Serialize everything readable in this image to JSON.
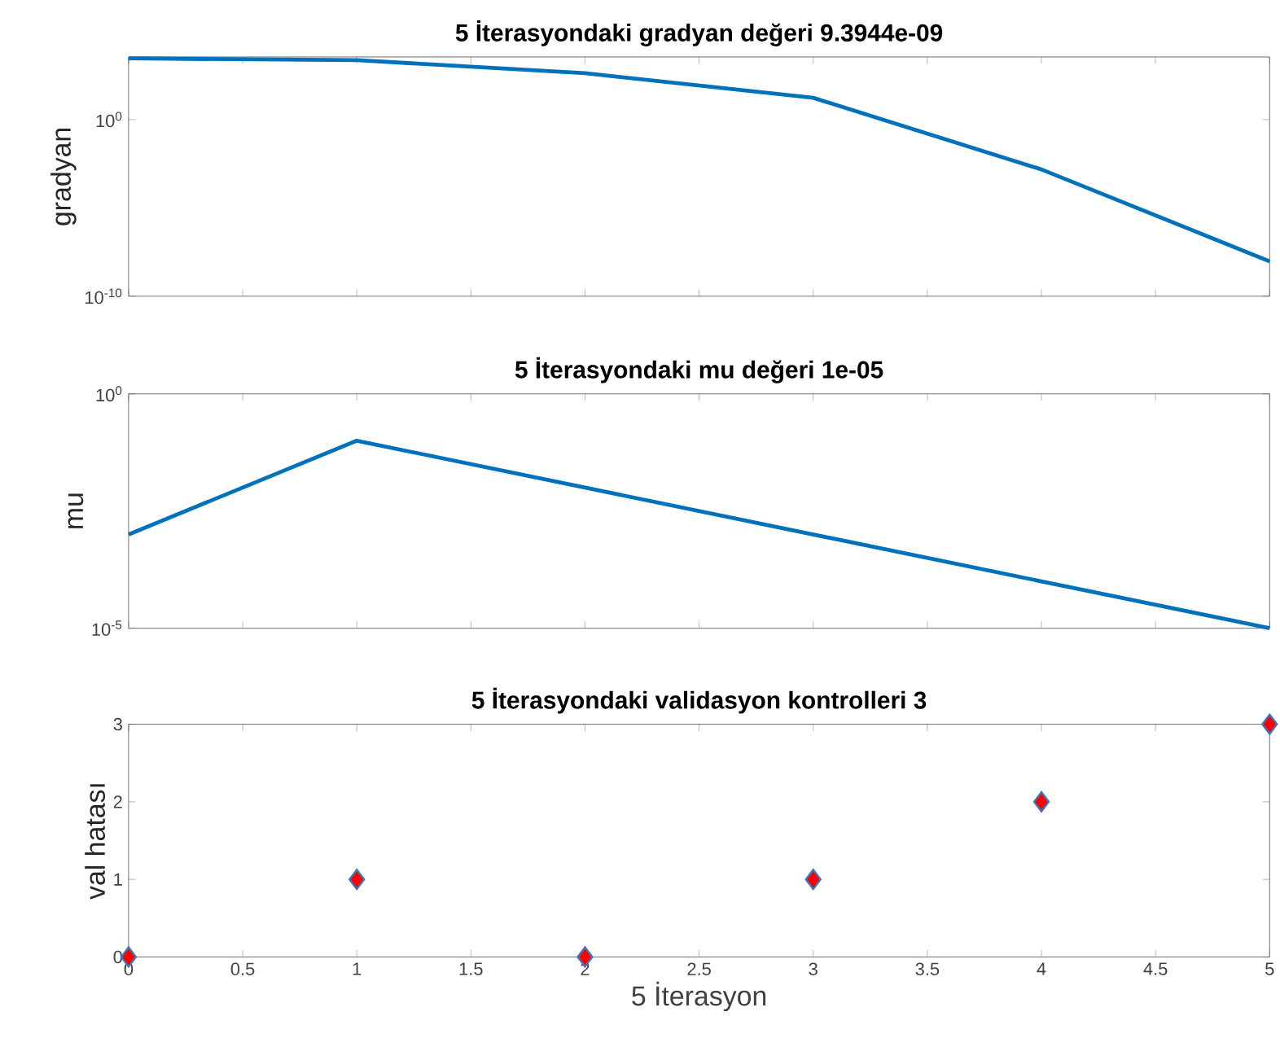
{
  "chart_data": [
    {
      "type": "line",
      "title": "5 İterasyondaki gradyan değeri 9.3944e-09",
      "ylabel": "gradyan",
      "x": [
        0,
        1,
        2,
        3,
        4,
        5
      ],
      "color": "#0072bd",
      "log": true,
      "values": [
        2900,
        2300,
        420,
        17,
        0.0015,
        9.3944e-09
      ],
      "xlim": [
        0,
        5
      ],
      "xticks": [
        0,
        0.5,
        1,
        1.5,
        2,
        2.5,
        3,
        3.5,
        4,
        4.5,
        5
      ],
      "ylim": [
        1e-10,
        3500
      ],
      "yticks": [
        {
          "value": 1e-10,
          "label": "10$^{-10}$"
        },
        {
          "value": 1,
          "label": "10$^{0}$"
        }
      ],
      "tick_labels": "y"
    },
    {
      "type": "line",
      "title": "5 İterasyondaki mu değeri 1e-05",
      "ylabel": "mu",
      "x": [
        0,
        1,
        2,
        3,
        4,
        5
      ],
      "color": "#0072bd",
      "log": true,
      "values": [
        0.001,
        0.1,
        0.01,
        0.001,
        0.0001,
        1e-05
      ],
      "xlim": [
        0,
        5
      ],
      "xticks": [
        0,
        0.5,
        1,
        1.5,
        2,
        2.5,
        3,
        3.5,
        4,
        4.5,
        5
      ],
      "ylim": [
        1e-05,
        1
      ],
      "yticks": [
        {
          "value": 1e-05,
          "label": "10$^{-5}$"
        },
        {
          "value": 1,
          "label": "10$^{0}$"
        }
      ],
      "tick_labels": "y"
    },
    {
      "type": "scatter",
      "title": "5 İterasyondaki validasyon kontrolleri 3",
      "xlabel": "5 İterasyon",
      "ylabel": "val hatası",
      "x": [
        0,
        1,
        2,
        3,
        4,
        5
      ],
      "color": "#ff0000",
      "marker": "diamond",
      "values": [
        0,
        1,
        0,
        1,
        2,
        3
      ],
      "xlim": [
        0,
        5
      ],
      "xticks": [
        0,
        0.5,
        1,
        1.5,
        2,
        2.5,
        3,
        3.5,
        4,
        4.5,
        5
      ],
      "ylim": [
        0,
        3
      ],
      "yticks": [
        0,
        1,
        2,
        3
      ]
    }
  ]
}
